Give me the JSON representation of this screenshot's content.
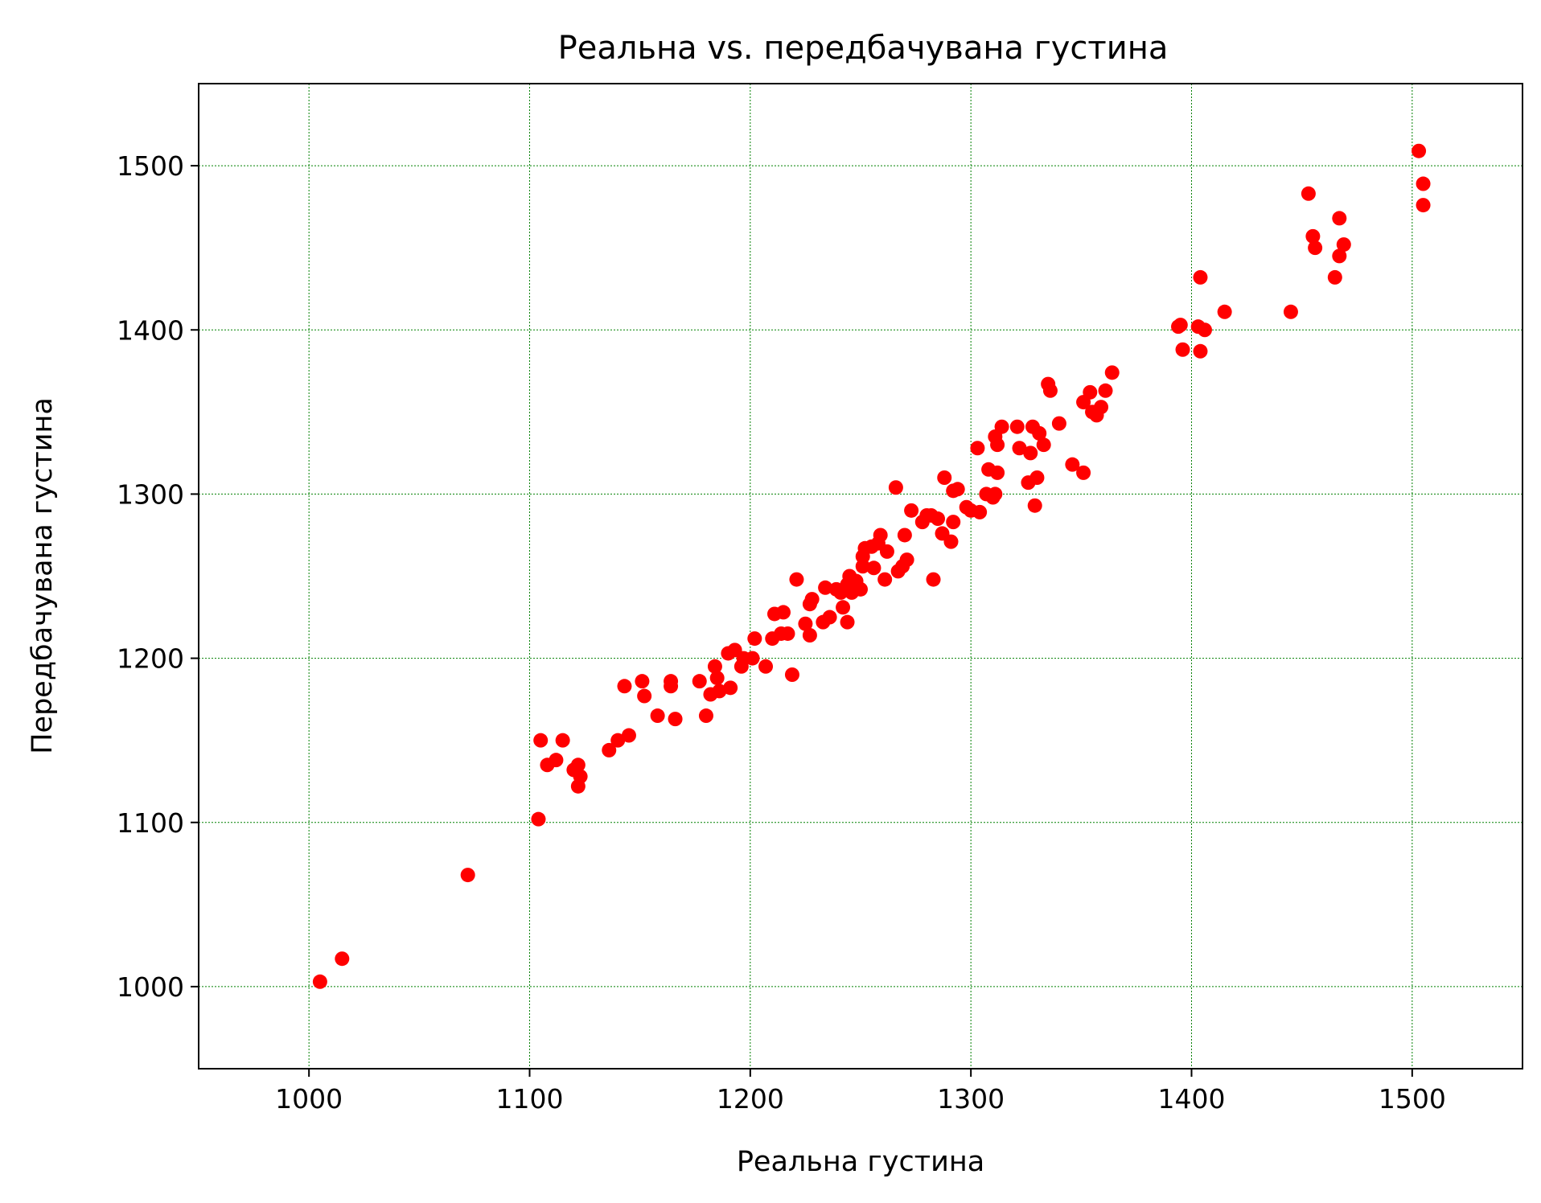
{
  "chart_data": {
    "type": "scatter",
    "title": "Реальна vs. передбачувана густина",
    "xlabel": "Реальна густина",
    "ylabel": "Передбачувана густина",
    "xlim": [
      950,
      1550
    ],
    "ylim": [
      950,
      1550
    ],
    "xticks": [
      1000,
      1100,
      1200,
      1300,
      1400,
      1500
    ],
    "yticks": [
      1000,
      1100,
      1200,
      1300,
      1400,
      1500
    ],
    "xtick_labels": [
      "1000",
      "1100",
      "1200",
      "1300",
      "1400",
      "1500"
    ],
    "ytick_labels": [
      "1000",
      "1100",
      "1200",
      "1300",
      "1400",
      "1500"
    ],
    "grid": true,
    "grid_color": "#008000",
    "marker_color": "#ff0000",
    "points": [
      [
        1005,
        1003
      ],
      [
        1015,
        1017
      ],
      [
        1072,
        1068
      ],
      [
        1104,
        1102
      ],
      [
        1105,
        1150
      ],
      [
        1108,
        1135
      ],
      [
        1112,
        1138
      ],
      [
        1115,
        1150
      ],
      [
        1120,
        1132
      ],
      [
        1122,
        1135
      ],
      [
        1123,
        1128
      ],
      [
        1122,
        1122
      ],
      [
        1136,
        1144
      ],
      [
        1140,
        1150
      ],
      [
        1143,
        1183
      ],
      [
        1145,
        1153
      ],
      [
        1151,
        1186
      ],
      [
        1152,
        1177
      ],
      [
        1158,
        1165
      ],
      [
        1164,
        1186
      ],
      [
        1164,
        1183
      ],
      [
        1166,
        1163
      ],
      [
        1177,
        1186
      ],
      [
        1180,
        1165
      ],
      [
        1182,
        1178
      ],
      [
        1184,
        1195
      ],
      [
        1185,
        1188
      ],
      [
        1186,
        1180
      ],
      [
        1190,
        1203
      ],
      [
        1191,
        1182
      ],
      [
        1193,
        1205
      ],
      [
        1196,
        1195
      ],
      [
        1197,
        1200
      ],
      [
        1201,
        1200
      ],
      [
        1202,
        1212
      ],
      [
        1207,
        1195
      ],
      [
        1210,
        1212
      ],
      [
        1211,
        1227
      ],
      [
        1214,
        1215
      ],
      [
        1215,
        1228
      ],
      [
        1217,
        1215
      ],
      [
        1219,
        1190
      ],
      [
        1221,
        1248
      ],
      [
        1225,
        1221
      ],
      [
        1227,
        1214
      ],
      [
        1227,
        1233
      ],
      [
        1228,
        1236
      ],
      [
        1233,
        1222
      ],
      [
        1234,
        1243
      ],
      [
        1236,
        1225
      ],
      [
        1239,
        1242
      ],
      [
        1241,
        1240
      ],
      [
        1242,
        1231
      ],
      [
        1244,
        1245
      ],
      [
        1244,
        1222
      ],
      [
        1246,
        1240
      ],
      [
        1245,
        1250
      ],
      [
        1248,
        1247
      ],
      [
        1250,
        1242
      ],
      [
        1251,
        1256
      ],
      [
        1251,
        1262
      ],
      [
        1252,
        1267
      ],
      [
        1255,
        1268
      ],
      [
        1256,
        1255
      ],
      [
        1258,
        1270
      ],
      [
        1259,
        1275
      ],
      [
        1261,
        1248
      ],
      [
        1262,
        1265
      ],
      [
        1266,
        1304
      ],
      [
        1267,
        1253
      ],
      [
        1269,
        1256
      ],
      [
        1270,
        1275
      ],
      [
        1271,
        1260
      ],
      [
        1273,
        1290
      ],
      [
        1278,
        1283
      ],
      [
        1280,
        1287
      ],
      [
        1282,
        1287
      ],
      [
        1283,
        1248
      ],
      [
        1285,
        1285
      ],
      [
        1287,
        1276
      ],
      [
        1288,
        1310
      ],
      [
        1291,
        1271
      ],
      [
        1292,
        1283
      ],
      [
        1292,
        1302
      ],
      [
        1294,
        1303
      ],
      [
        1298,
        1292
      ],
      [
        1300,
        1290
      ],
      [
        1303,
        1328
      ],
      [
        1304,
        1289
      ],
      [
        1307,
        1300
      ],
      [
        1308,
        1315
      ],
      [
        1310,
        1298
      ],
      [
        1311,
        1300
      ],
      [
        1311,
        1335
      ],
      [
        1312,
        1330
      ],
      [
        1312,
        1313
      ],
      [
        1314,
        1341
      ],
      [
        1321,
        1341
      ],
      [
        1322,
        1328
      ],
      [
        1326,
        1307
      ],
      [
        1327,
        1325
      ],
      [
        1328,
        1341
      ],
      [
        1329,
        1293
      ],
      [
        1330,
        1310
      ],
      [
        1331,
        1337
      ],
      [
        1333,
        1330
      ],
      [
        1335,
        1367
      ],
      [
        1336,
        1363
      ],
      [
        1340,
        1343
      ],
      [
        1346,
        1318
      ],
      [
        1351,
        1313
      ],
      [
        1351,
        1356
      ],
      [
        1354,
        1362
      ],
      [
        1355,
        1350
      ],
      [
        1357,
        1348
      ],
      [
        1359,
        1353
      ],
      [
        1361,
        1363
      ],
      [
        1364,
        1374
      ],
      [
        1394,
        1402
      ],
      [
        1395,
        1403
      ],
      [
        1396,
        1388
      ],
      [
        1403,
        1402
      ],
      [
        1404,
        1387
      ],
      [
        1404,
        1432
      ],
      [
        1406,
        1400
      ],
      [
        1415,
        1411
      ],
      [
        1445,
        1411
      ],
      [
        1453,
        1483
      ],
      [
        1455,
        1457
      ],
      [
        1456,
        1450
      ],
      [
        1465,
        1432
      ],
      [
        1467,
        1468
      ],
      [
        1467,
        1445
      ],
      [
        1469,
        1452
      ],
      [
        1503,
        1509
      ],
      [
        1505,
        1489
      ],
      [
        1505,
        1476
      ]
    ]
  }
}
